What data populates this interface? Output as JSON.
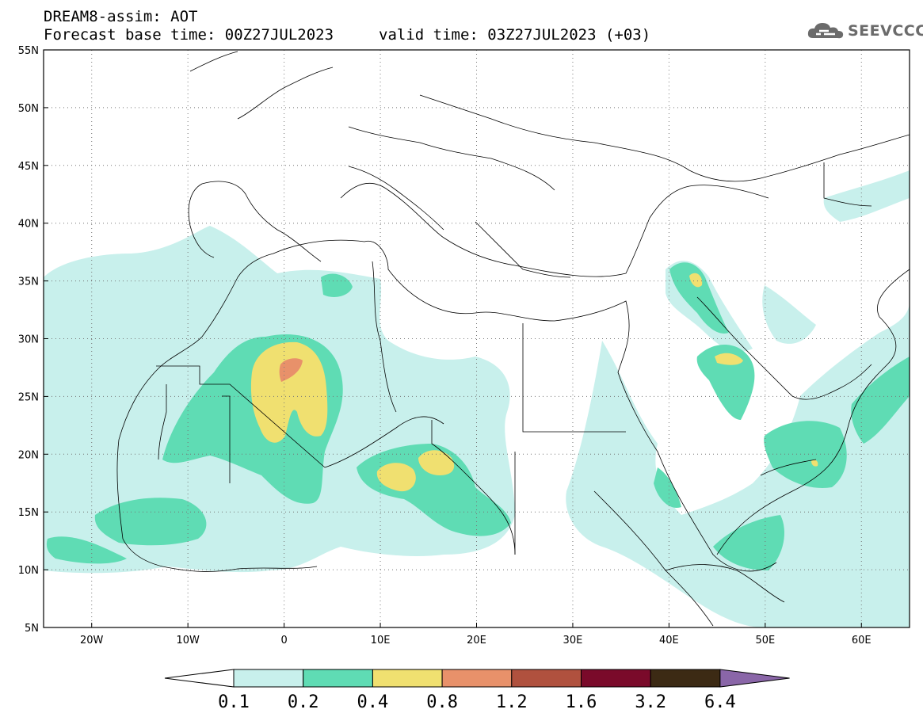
{
  "header": {
    "title": "DREAM8-assim: AOT",
    "base_time": "Forecast base time: 00Z27JUL2023",
    "valid_time": "valid time: 03Z27JUL2023 (+03)"
  },
  "logo": {
    "text": "SEEVCCC",
    "icon": "cloud-icon"
  },
  "map": {
    "lon_range": [
      -25,
      65
    ],
    "lat_range": [
      5,
      55
    ],
    "lat_ticks": [
      {
        "value": 55,
        "label": "55N"
      },
      {
        "value": 50,
        "label": "50N"
      },
      {
        "value": 45,
        "label": "45N"
      },
      {
        "value": 40,
        "label": "40N"
      },
      {
        "value": 35,
        "label": "35N"
      },
      {
        "value": 30,
        "label": "30N"
      },
      {
        "value": 25,
        "label": "25N"
      },
      {
        "value": 20,
        "label": "20N"
      },
      {
        "value": 15,
        "label": "15N"
      },
      {
        "value": 10,
        "label": "10N"
      },
      {
        "value": 5,
        "label": "5N"
      }
    ],
    "lon_ticks": [
      {
        "value": -20,
        "label": "20W"
      },
      {
        "value": -10,
        "label": "10W"
      },
      {
        "value": 0,
        "label": "0"
      },
      {
        "value": 10,
        "label": "10E"
      },
      {
        "value": 20,
        "label": "20E"
      },
      {
        "value": 30,
        "label": "30E"
      },
      {
        "value": 40,
        "label": "40E"
      },
      {
        "value": 50,
        "label": "50E"
      },
      {
        "value": 60,
        "label": "60E"
      }
    ],
    "grid": true
  },
  "colorbar": {
    "labels": [
      "0.1",
      "0.2",
      "0.4",
      "0.8",
      "1.2",
      "1.6",
      "3.2",
      "6.4"
    ],
    "colors": [
      "#c8f0ec",
      "#5fdcb4",
      "#f0e070",
      "#e8916a",
      "#b0513e",
      "#7a0a2a",
      "#3c2a14",
      "#8a66a8"
    ]
  }
}
